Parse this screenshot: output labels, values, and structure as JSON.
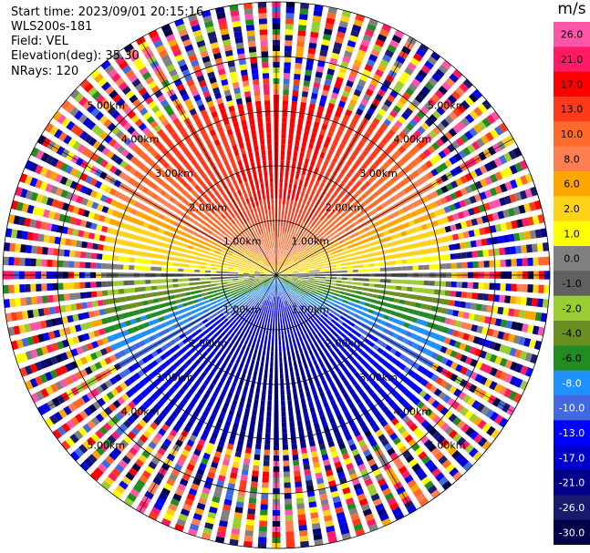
{
  "header": {
    "start_time": "Start time: 2023/09/01 20:15:16",
    "instrument": "WLS200s-181",
    "field": "Field: VEL",
    "elevation": "Elevation(deg): 35.30",
    "nrays": "NRays: 120"
  },
  "colorbar": {
    "unit": "m/s",
    "ticks": [
      "26.0",
      "21.0",
      "17.0",
      "13.0",
      "10.0",
      "8.0",
      "6.0",
      "2.0",
      "1.0",
      "0.0",
      "-1.0",
      "-2.0",
      "-4.0",
      "-6.0",
      "-8.0",
      "-10.0",
      "-13.0",
      "-17.0",
      "-21.0",
      "-26.0",
      "-30.0"
    ],
    "colors": [
      "#ff55a8",
      "#ff1a66",
      "#ff0000",
      "#ff3a1a",
      "#ff6a2a",
      "#ff7f50",
      "#ffa500",
      "#ffd21a",
      "#ffff00",
      "#808080",
      "#606060",
      "#9acd32",
      "#6b8e23",
      "#228b22",
      "#1e90ff",
      "#4169e1",
      "#0000ff",
      "#0000cd",
      "#00008b",
      "#191970",
      "#00004a"
    ]
  },
  "chart_data": {
    "type": "heatmap",
    "projection": "polar-ppi",
    "rays": 120,
    "range_rings_km": [
      1,
      2,
      3,
      4,
      5
    ],
    "ring_labels": [
      "1.00km",
      "2.00km",
      "3.00km",
      "4.00km",
      "5.00km"
    ],
    "max_range_km": 5.0,
    "valid_range_km": 3.5,
    "value_unit": "m/s",
    "value_range": [
      -30,
      26
    ],
    "wind_sector_center_deg": 0,
    "wind_peak_ms": 18,
    "noise_values": [
      26,
      21,
      17,
      13,
      10,
      8,
      6,
      2,
      -2,
      -6,
      -10,
      -13,
      -17,
      -21,
      -26,
      -30,
      0,
      1
    ]
  }
}
